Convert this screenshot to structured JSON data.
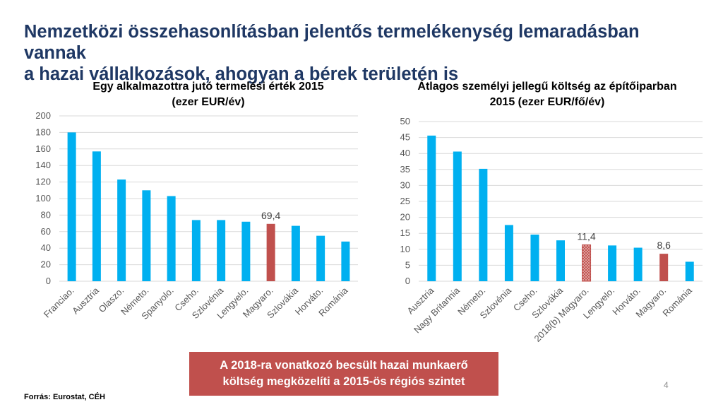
{
  "slide": {
    "title_line1": "Nemzetközi összehasonlításban jelentős termelékenység lemaradásban vannak",
    "title_line2": "a hazai vállalkozások, ahogyan a bérek területén is",
    "callout_line1": "A 2018-ra vonatkozó becsült hazai munkaerő",
    "callout_line2": "költség megközelíti a 2015-ös régiós szintet",
    "source": "Forrás: Eurostat, CÉH",
    "page_number": "4"
  },
  "colors": {
    "bar_blue": "#00b0f0",
    "bar_red": "#c0504d",
    "gridline": "#d9d9d9",
    "axis_text": "#595959",
    "title_text": "#1f3864"
  },
  "chart_data": [
    {
      "type": "bar",
      "title_line1": "Egy alkalmazottra jutó termelési érték 2015",
      "title_line2": "(ezer EUR/év)",
      "categories": [
        "Franciao.",
        "Ausztria",
        "Olaszo.",
        "Németo.",
        "Spanyolo.",
        "Cseho.",
        "Szlovénia",
        "Lengyelo.",
        "Magyaro.",
        "Szlovákia",
        "Horváto.",
        "Románia"
      ],
      "values": [
        180,
        157,
        123,
        110,
        103,
        74,
        74,
        72,
        69.4,
        67,
        55,
        48
      ],
      "highlight": [
        "none",
        "none",
        "none",
        "none",
        "none",
        "none",
        "none",
        "none",
        "red",
        "none",
        "none",
        "none"
      ],
      "data_labels": [
        "",
        "",
        "",
        "",
        "",
        "",
        "",
        "",
        "69,4",
        "",
        "",
        ""
      ],
      "yticks": [
        "0",
        "20",
        "40",
        "60",
        "80",
        "100",
        "120",
        "140",
        "160",
        "180",
        "200"
      ],
      "ylim": [
        0,
        200
      ],
      "grid": true,
      "xlabel": "",
      "ylabel": ""
    },
    {
      "type": "bar",
      "title_line1": "Átlagos személyi jellegű költség az építőiparban",
      "title_line2": "2015 (ezer EUR/fő/év)",
      "categories": [
        "Ausztria",
        "Nagy Britannia",
        "Németo.",
        "Szlovénia",
        "Cseho.",
        "Szlovákia",
        "2018(b) Magyaro.",
        "Lengyelo.",
        "Horváto.",
        "Magyaro.",
        "Románia"
      ],
      "values": [
        45.6,
        40.6,
        35.2,
        17.6,
        14.6,
        12.8,
        11.4,
        11.2,
        10.5,
        8.6,
        6.1
      ],
      "highlight": [
        "none",
        "none",
        "none",
        "none",
        "none",
        "none",
        "hatched",
        "none",
        "none",
        "red",
        "none"
      ],
      "data_labels": [
        "",
        "",
        "",
        "",
        "",
        "",
        "11,4",
        "",
        "",
        "8,6",
        ""
      ],
      "yticks": [
        "0",
        "5",
        "10",
        "15",
        "20",
        "25",
        "30",
        "35",
        "40",
        "45",
        "50"
      ],
      "ylim": [
        0,
        50
      ],
      "grid": true,
      "xlabel": "",
      "ylabel": ""
    }
  ]
}
